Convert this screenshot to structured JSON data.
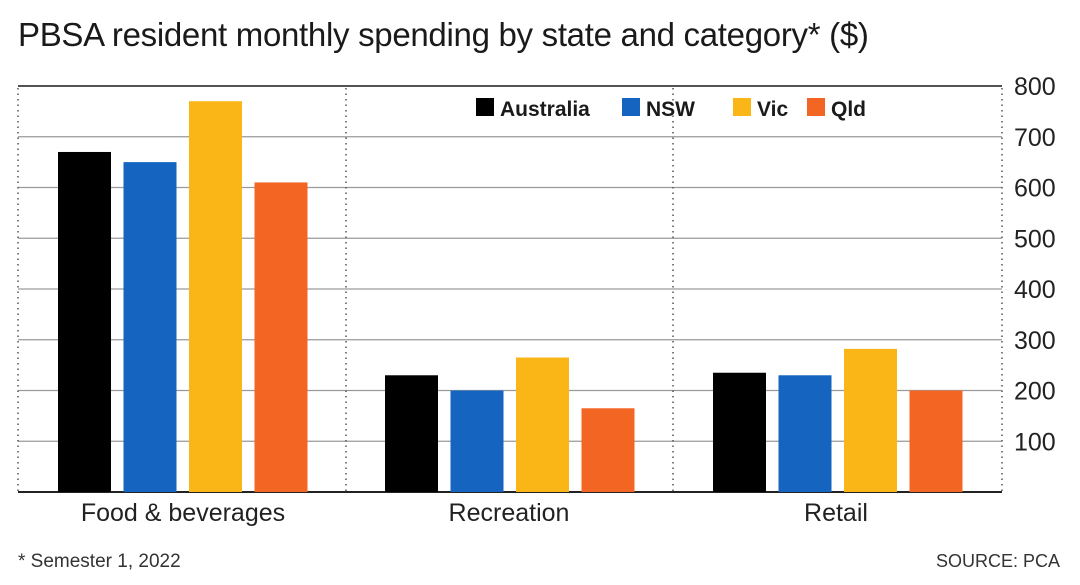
{
  "title": "PBSA resident monthly spending by state and category* ($)",
  "footnote": "* Semester 1, 2022",
  "source": "SOURCE: PCA",
  "chart_data": {
    "type": "bar",
    "title": "PBSA resident monthly spending by state and category* ($)",
    "xlabel": "",
    "ylabel": "",
    "ylim": [
      0,
      800
    ],
    "yticks": [
      100,
      200,
      300,
      400,
      500,
      600,
      700,
      800
    ],
    "grid": true,
    "legend_position": "top",
    "y_axis_side": "right",
    "categories": [
      "Food & beverages",
      "Recreation",
      "Retail"
    ],
    "series": [
      {
        "name": "Australia",
        "color": "#000000",
        "values": [
          670,
          230,
          235
        ]
      },
      {
        "name": "NSW",
        "color": "#1565c0",
        "values": [
          650,
          200,
          230
        ]
      },
      {
        "name": "Vic",
        "color": "#f9b616",
        "values": [
          770,
          265,
          282
        ]
      },
      {
        "name": "Qld",
        "color": "#f26522",
        "values": [
          610,
          165,
          200
        ]
      }
    ]
  }
}
